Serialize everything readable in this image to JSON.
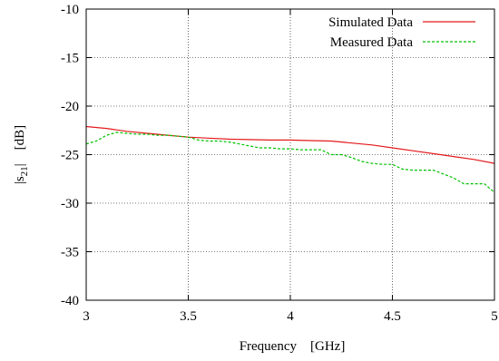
{
  "chart_data": {
    "type": "line",
    "xlabel": "Frequency    [GHz]",
    "ylabel_main": "|s",
    "ylabel_sub": "21",
    "ylabel_rest": "|    [dB]",
    "xlim": [
      3,
      5
    ],
    "ylim": [
      -40,
      -10
    ],
    "xticks": [
      3,
      3.5,
      4,
      4.5,
      5
    ],
    "yticks": [
      -40,
      -35,
      -30,
      -25,
      -20,
      -15,
      -10
    ],
    "xtick_labels": [
      "3",
      "3.5",
      "4",
      "4.5",
      "5"
    ],
    "ytick_labels": [
      "-40",
      "-35",
      "-30",
      "-25",
      "-20",
      "-15",
      "-10"
    ],
    "grid": true,
    "legend_position": "top-right",
    "series": [
      {
        "name": "Simulated Data",
        "color": "#e41a1c",
        "style": "solid",
        "x": [
          3.0,
          3.1,
          3.2,
          3.3,
          3.4,
          3.5,
          3.6,
          3.7,
          3.8,
          3.9,
          4.0,
          4.1,
          4.2,
          4.3,
          4.4,
          4.5,
          4.6,
          4.7,
          4.8,
          4.9,
          5.0
        ],
        "y": [
          -22.1,
          -22.3,
          -22.6,
          -22.8,
          -23.0,
          -23.2,
          -23.3,
          -23.4,
          -23.45,
          -23.5,
          -23.5,
          -23.55,
          -23.6,
          -23.8,
          -24.0,
          -24.3,
          -24.6,
          -24.9,
          -25.2,
          -25.5,
          -25.9
        ]
      },
      {
        "name": "Measured Data",
        "color": "#00c000",
        "style": "dashed",
        "x": [
          3.0,
          3.05,
          3.1,
          3.15,
          3.2,
          3.25,
          3.3,
          3.35,
          3.4,
          3.45,
          3.5,
          3.55,
          3.6,
          3.65,
          3.7,
          3.75,
          3.8,
          3.85,
          3.9,
          3.95,
          4.0,
          4.05,
          4.1,
          4.15,
          4.2,
          4.25,
          4.3,
          4.35,
          4.4,
          4.45,
          4.5,
          4.55,
          4.6,
          4.65,
          4.7,
          4.75,
          4.8,
          4.85,
          4.9,
          4.95,
          5.0
        ],
        "y": [
          -23.9,
          -23.6,
          -23.0,
          -22.7,
          -22.8,
          -22.9,
          -22.9,
          -23.0,
          -23.0,
          -23.1,
          -23.2,
          -23.5,
          -23.6,
          -23.6,
          -23.7,
          -23.9,
          -24.1,
          -24.3,
          -24.3,
          -24.4,
          -24.4,
          -24.5,
          -24.5,
          -24.5,
          -25.0,
          -25.0,
          -25.3,
          -25.7,
          -25.9,
          -26.0,
          -26.0,
          -26.5,
          -26.6,
          -26.6,
          -26.6,
          -27.0,
          -27.4,
          -28.0,
          -28.0,
          -28.0,
          -28.9
        ]
      }
    ]
  }
}
